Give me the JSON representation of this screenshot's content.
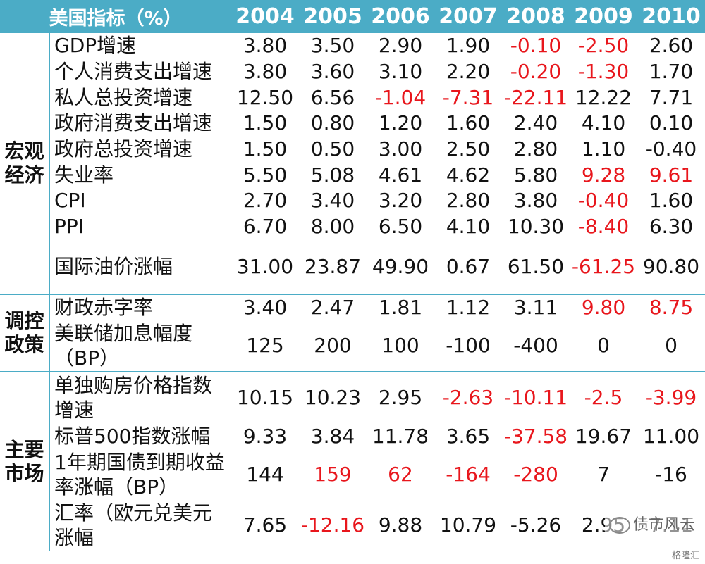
{
  "header": {
    "label": "美国指标（%）",
    "years": [
      "2004",
      "2005",
      "2006",
      "2007",
      "2008",
      "2009",
      "2010"
    ]
  },
  "groups": [
    {
      "name": "宏观经济",
      "rows": [
        {
          "label": "GDP增速",
          "values": [
            "3.80",
            "3.50",
            "2.90",
            "1.90",
            "-0.10",
            "-2.50",
            "2.60"
          ],
          "red": [
            false,
            false,
            false,
            false,
            true,
            true,
            false
          ]
        },
        {
          "label": "个人消费支出增速",
          "values": [
            "3.80",
            "3.60",
            "3.10",
            "2.20",
            "-0.20",
            "-1.30",
            "1.70"
          ],
          "red": [
            false,
            false,
            false,
            false,
            true,
            true,
            false
          ]
        },
        {
          "label": "私人总投资增速",
          "values": [
            "12.50",
            "6.56",
            "-1.04",
            "-7.31",
            "-22.11",
            "12.22",
            "7.71"
          ],
          "red": [
            false,
            false,
            true,
            true,
            true,
            false,
            false
          ]
        },
        {
          "label": "政府消费支出增速",
          "values": [
            "1.50",
            "0.80",
            "1.20",
            "1.60",
            "2.40",
            "4.10",
            "0.10"
          ],
          "red": [
            false,
            false,
            false,
            false,
            false,
            false,
            false
          ]
        },
        {
          "label": "政府总投资增速",
          "values": [
            "1.50",
            "0.50",
            "3.00",
            "2.50",
            "2.80",
            "1.10",
            "-0.40"
          ],
          "red": [
            false,
            false,
            false,
            false,
            false,
            false,
            false
          ]
        },
        {
          "label": "失业率",
          "values": [
            "5.50",
            "5.08",
            "4.61",
            "4.62",
            "5.80",
            "9.28",
            "9.61"
          ],
          "red": [
            false,
            false,
            false,
            false,
            false,
            true,
            true
          ]
        },
        {
          "label": "CPI",
          "values": [
            "2.70",
            "3.40",
            "3.20",
            "2.80",
            "3.80",
            "-0.40",
            "1.60"
          ],
          "red": [
            false,
            false,
            false,
            false,
            false,
            true,
            false
          ]
        },
        {
          "label": "PPI",
          "values": [
            "6.70",
            "8.00",
            "6.50",
            "4.10",
            "10.30",
            "-8.40",
            "6.30"
          ],
          "red": [
            false,
            false,
            false,
            false,
            false,
            true,
            false
          ]
        },
        {
          "label": "国际油价涨幅",
          "values": [
            "31.00",
            "23.87",
            "49.90",
            "0.67",
            "61.50",
            "-61.25",
            "90.80"
          ],
          "red": [
            false,
            false,
            false,
            false,
            false,
            true,
            false
          ]
        }
      ]
    },
    {
      "name": "调控政策",
      "rows": [
        {
          "label": "财政赤字率",
          "values": [
            "3.40",
            "2.47",
            "1.81",
            "1.12",
            "3.11",
            "9.80",
            "8.75"
          ],
          "red": [
            false,
            false,
            false,
            false,
            false,
            true,
            true
          ]
        },
        {
          "label": "美联储加息幅度（BP）",
          "values": [
            "125",
            "200",
            "100",
            "-100",
            "-400",
            "0",
            "0"
          ],
          "red": [
            false,
            false,
            false,
            false,
            false,
            false,
            false
          ]
        }
      ]
    },
    {
      "name": "主要市场",
      "rows": [
        {
          "label": "单独购房价格指数增速",
          "values": [
            "10.15",
            "10.23",
            "2.95",
            "-2.63",
            "-10.11",
            "-2.5",
            "-3.99"
          ],
          "red": [
            false,
            false,
            false,
            true,
            true,
            true,
            true
          ]
        },
        {
          "label": "标普500指数涨幅",
          "values": [
            "9.33",
            "3.84",
            "11.78",
            "3.65",
            "-37.58",
            "19.67",
            "11.00"
          ],
          "red": [
            false,
            false,
            false,
            false,
            true,
            false,
            false
          ]
        },
        {
          "label": "1年期国债到期收益率涨幅（BP）",
          "values": [
            "144",
            "159",
            "62",
            "-164",
            "-280",
            "7",
            "-16"
          ],
          "red": [
            false,
            true,
            true,
            true,
            true,
            false,
            false
          ]
        },
        {
          "label": "汇率（欧元兑美元涨幅",
          "values": [
            "7.65",
            "-12.16",
            "9.88",
            "10.79",
            "-5.26",
            "2.95",
            "7.11"
          ],
          "red": [
            false,
            true,
            false,
            false,
            false,
            false,
            false
          ]
        }
      ]
    }
  ],
  "watermark": {
    "text": "债市风云",
    "source": "格隆汇"
  },
  "colors": {
    "header_bg": "#4bacc6",
    "negative": "#e8161c"
  }
}
